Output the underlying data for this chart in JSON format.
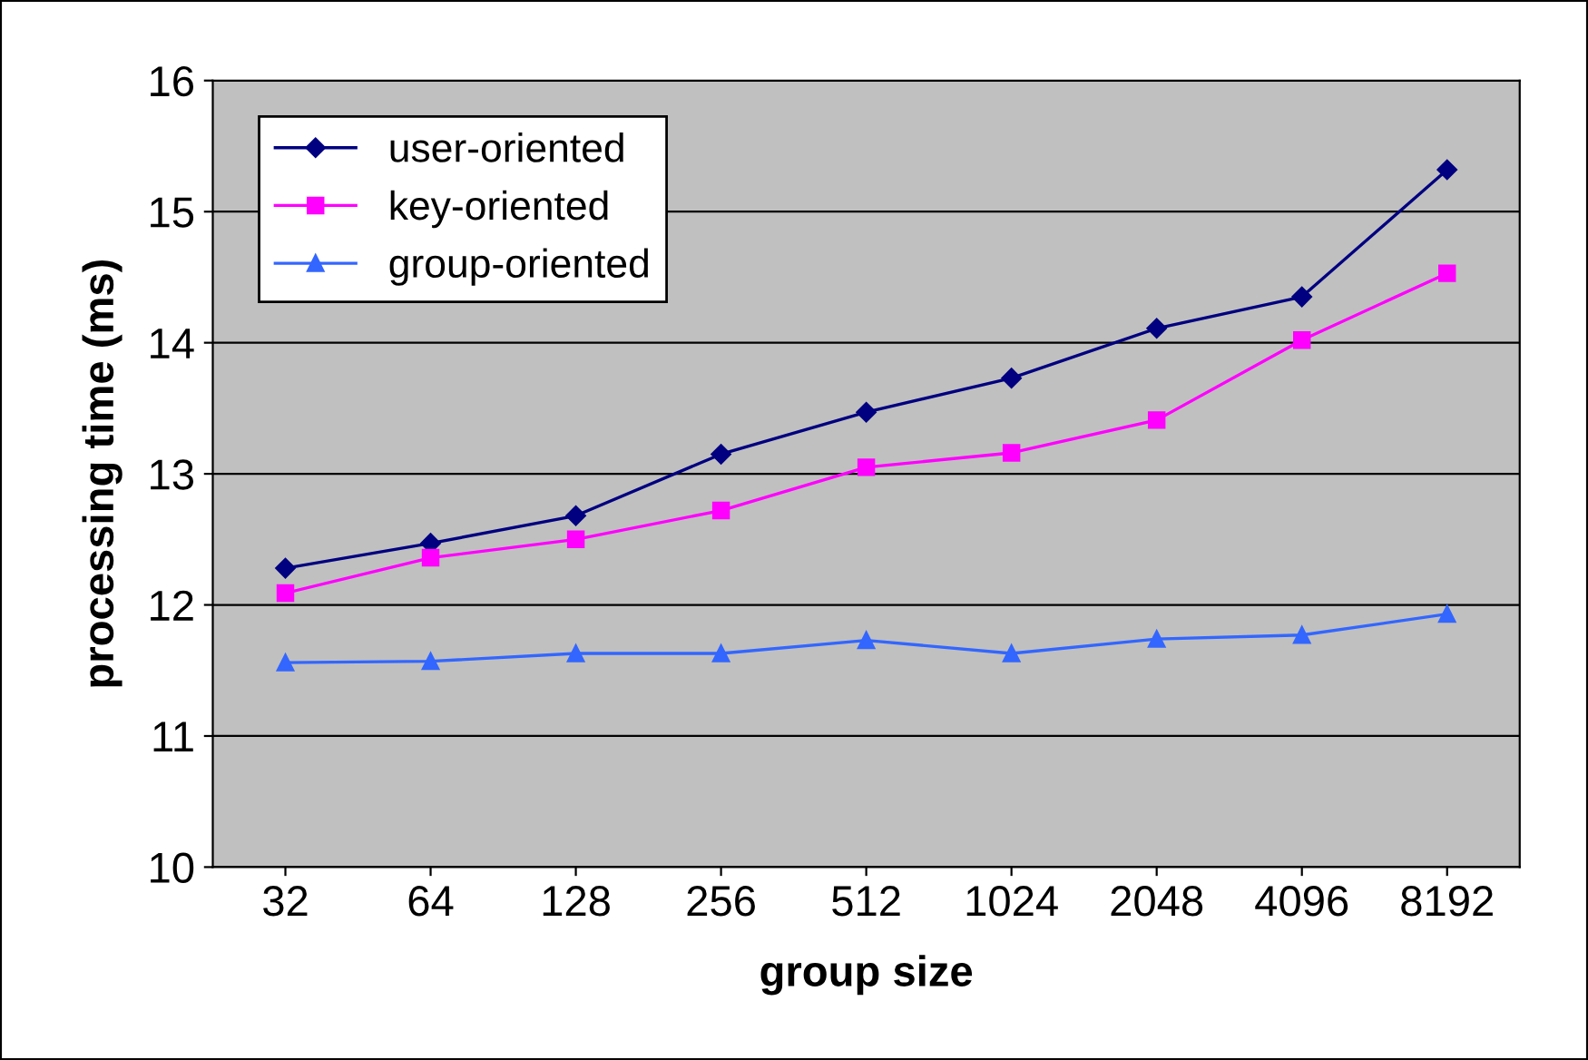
{
  "chart_data": {
    "type": "line",
    "xlabel": "group size",
    "ylabel": "processing time (ms)",
    "categories": [
      "32",
      "64",
      "128",
      "256",
      "512",
      "1024",
      "2048",
      "4096",
      "8192"
    ],
    "series": [
      {
        "name": "user-oriented",
        "color": "#000080",
        "marker": "diamond",
        "values": [
          12.28,
          12.47,
          12.68,
          13.15,
          13.47,
          13.73,
          14.11,
          14.35,
          15.32
        ]
      },
      {
        "name": "key-oriented",
        "color": "#ff00ff",
        "marker": "square",
        "values": [
          12.09,
          12.36,
          12.5,
          12.72,
          13.05,
          13.16,
          13.41,
          14.02,
          14.53
        ]
      },
      {
        "name": "group-oriented",
        "color": "#3366ff",
        "marker": "triangle",
        "values": [
          11.56,
          11.57,
          11.63,
          11.63,
          11.73,
          11.63,
          11.74,
          11.77,
          11.93
        ]
      }
    ],
    "ylim": [
      10,
      16
    ],
    "yticks": [
      10,
      11,
      12,
      13,
      14,
      15,
      16
    ],
    "grid": "y",
    "legend": "top left",
    "line_style": "solid"
  }
}
